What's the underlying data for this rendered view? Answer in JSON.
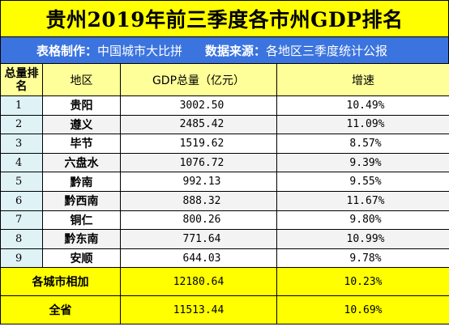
{
  "title": "贵州2019年前三季度各市州GDP排名",
  "source": {
    "maker_label": "表格制作：",
    "maker_value": "中国城市大比拼",
    "data_label": "数据来源：",
    "data_value": "各地区三季度统计公报"
  },
  "headers": {
    "rank": "总量排名",
    "region": "地区",
    "gdp": "GDP总量（亿元）",
    "growth": "增速"
  },
  "rows": [
    {
      "rank": "1",
      "region": "贵阳",
      "gdp": "3002.50",
      "growth": "10.49%"
    },
    {
      "rank": "2",
      "region": "遵义",
      "gdp": "2485.42",
      "growth": "11.09%"
    },
    {
      "rank": "3",
      "region": "毕节",
      "gdp": "1519.62",
      "growth": "8.57%"
    },
    {
      "rank": "4",
      "region": "六盘水",
      "gdp": "1076.72",
      "growth": "9.39%"
    },
    {
      "rank": "5",
      "region": "黔南",
      "gdp": "992.13",
      "growth": "9.55%"
    },
    {
      "rank": "6",
      "region": "黔西南",
      "gdp": "888.32",
      "growth": "11.67%"
    },
    {
      "rank": "7",
      "region": "铜仁",
      "gdp": "800.26",
      "growth": "9.80%"
    },
    {
      "rank": "8",
      "region": "黔东南",
      "gdp": "771.64",
      "growth": "10.99%"
    },
    {
      "rank": "9",
      "region": "安顺",
      "gdp": "644.03",
      "growth": "9.78%"
    }
  ],
  "summary": [
    {
      "label": "各城市相加",
      "gdp": "12180.64",
      "growth": "10.23%"
    },
    {
      "label": "全省",
      "gdp": "11513.44",
      "growth": "10.69%"
    }
  ],
  "colors": {
    "title_bg": "#ffff00",
    "source_bg": "#3b74de",
    "header_bg": "#ffff99",
    "rank_bg": "#dff2f6",
    "summary_bg": "#ffff00"
  }
}
